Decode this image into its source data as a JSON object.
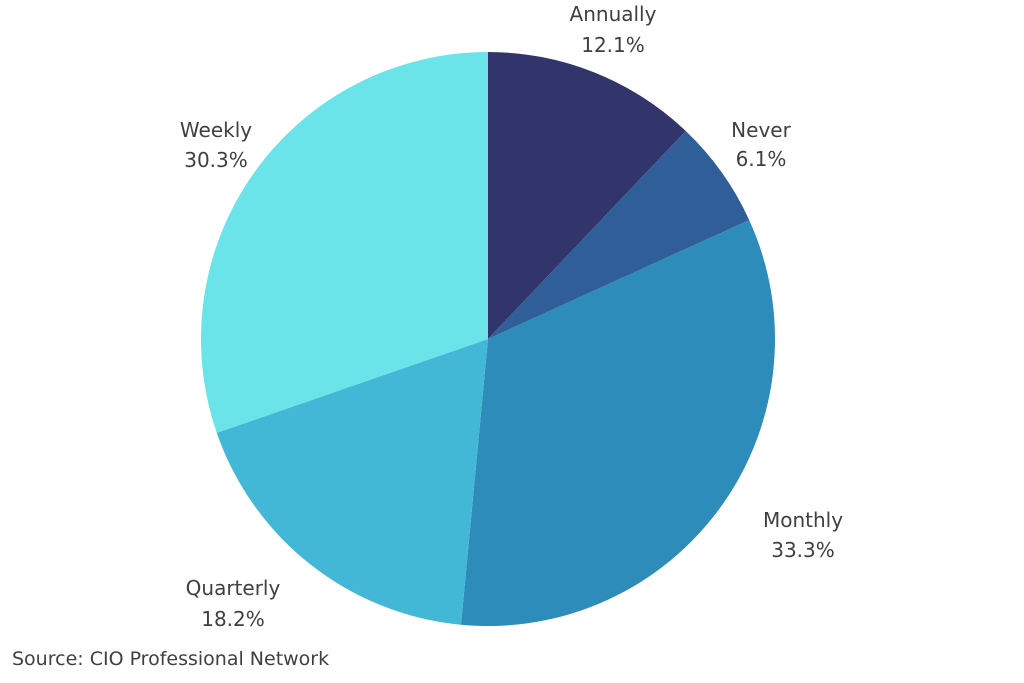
{
  "chart_data": {
    "type": "pie",
    "start": "12 o'clock",
    "direction": "clockwise",
    "slices": [
      {
        "label": "Annually",
        "value": 12.1,
        "value_label": "12.1%",
        "color": "#31356b"
      },
      {
        "label": "Never",
        "value": 6.1,
        "value_label": "6.1%",
        "color": "#2f5e98"
      },
      {
        "label": "Monthly",
        "value": 33.3,
        "value_label": "33.3%",
        "color": "#2d8cba"
      },
      {
        "label": "Quarterly",
        "value": 18.2,
        "value_label": "18.2%",
        "color": "#42b7d6"
      },
      {
        "label": "Weekly",
        "value": 30.3,
        "value_label": "30.3%",
        "color": "#6ae4e9"
      }
    ]
  },
  "source": "Source: CIO Professional Network"
}
